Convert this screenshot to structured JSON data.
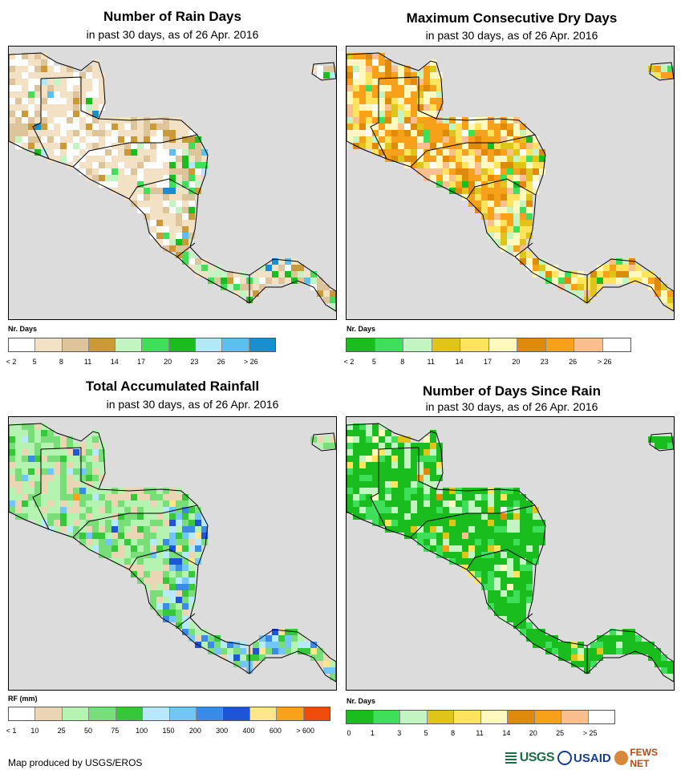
{
  "panels": [
    {
      "id": "rain-days",
      "title": "Number of Rain Days",
      "subtitle": "in past 30 days, as of 26 Apr. 2016",
      "legend_title": "Nr. Days",
      "legend_colors": [
        "#ffffff",
        "#f3e1c5",
        "#ddc49b",
        "#c99a35",
        "#c2f5c2",
        "#3ee05a",
        "#19bd1e",
        "#b4e8f7",
        "#5cc0ec",
        "#1a8fcf"
      ],
      "legend_labels": [
        "< 2",
        "5",
        "8",
        "11",
        "14",
        "17",
        "20",
        "23",
        "26",
        "> 26"
      ],
      "tick_mode": "boundary",
      "land_weights": [
        0.28,
        0.45,
        0.18,
        0.04,
        0.02,
        0.01,
        0.005,
        0.01,
        0.003,
        0.002
      ],
      "rain_weights": [
        0.1,
        0.25,
        0.25,
        0.12,
        0.12,
        0.06,
        0.04,
        0.03,
        0.02,
        0.01
      ]
    },
    {
      "id": "dry-days",
      "title": "Maximum Consecutive Dry Days",
      "subtitle": "in past 30 days, as of 26 Apr. 2016",
      "legend_title": "Nr. Days",
      "legend_colors": [
        "#19bd1e",
        "#3ee05a",
        "#c2f5c2",
        "#dfc41a",
        "#fde45c",
        "#fff9bf",
        "#e08a0c",
        "#f7a11a",
        "#f9bf8e",
        "#ffffff"
      ],
      "legend_labels": [
        "< 2",
        "5",
        "8",
        "11",
        "14",
        "17",
        "20",
        "23",
        "26",
        "> 26"
      ],
      "tick_mode": "boundary",
      "land_weights": [
        0.01,
        0.02,
        0.03,
        0.05,
        0.14,
        0.2,
        0.1,
        0.35,
        0.08,
        0.02
      ],
      "rain_weights": [
        0.04,
        0.08,
        0.12,
        0.12,
        0.2,
        0.2,
        0.08,
        0.1,
        0.04,
        0.02
      ]
    },
    {
      "id": "rainfall",
      "title": "Total Accumulated Rainfall",
      "subtitle": "in past 30 days, as of 26 Apr. 2016",
      "legend_title": "RF (mm)",
      "legend_colors": [
        "#ffffff",
        "#ead5b5",
        "#b5f3b0",
        "#78de78",
        "#36c73a",
        "#b6e9fb",
        "#72c6f6",
        "#3a8ae8",
        "#1c55d6",
        "#ffe68a",
        "#f8a21a",
        "#f04b0a"
      ],
      "legend_labels": [
        "< 1",
        "10",
        "25",
        "50",
        "75",
        "100",
        "150",
        "200",
        "300",
        "400",
        "600",
        "> 600"
      ],
      "tick_mode": "boundary",
      "land_weights": [
        0.01,
        0.25,
        0.35,
        0.25,
        0.08,
        0.03,
        0.02,
        0.005,
        0.002,
        0.001,
        0.001,
        0.001
      ],
      "rain_weights": [
        0.0,
        0.04,
        0.15,
        0.2,
        0.15,
        0.1,
        0.12,
        0.12,
        0.08,
        0.03,
        0.01,
        0.0
      ]
    },
    {
      "id": "days-since-rain",
      "title": "Number of Days Since Rain",
      "subtitle": "in past 30 days, as of 26 Apr. 2016",
      "legend_title": "Nr. Days",
      "legend_colors": [
        "#19bd1e",
        "#3ee05a",
        "#c2f5c2",
        "#dfc41a",
        "#fde45c",
        "#fff9bf",
        "#e08a0c",
        "#f7a11a",
        "#f9bf8e",
        "#ffffff"
      ],
      "legend_labels": [
        "0",
        "1",
        "3",
        "5",
        "8",
        "11",
        "14",
        "20",
        "25",
        "> 25"
      ],
      "tick_mode": "boundary",
      "land_weights": [
        0.62,
        0.15,
        0.14,
        0.02,
        0.04,
        0.02,
        0.004,
        0.003,
        0.002,
        0.001
      ],
      "rain_weights": [
        0.7,
        0.15,
        0.1,
        0.02,
        0.02,
        0.01,
        0,
        0,
        0,
        0
      ]
    }
  ],
  "footer": "Map produced by USGS/EROS",
  "logos": {
    "usgs": "USGS",
    "usaid": "USAID",
    "fews": "FEWS NET"
  }
}
